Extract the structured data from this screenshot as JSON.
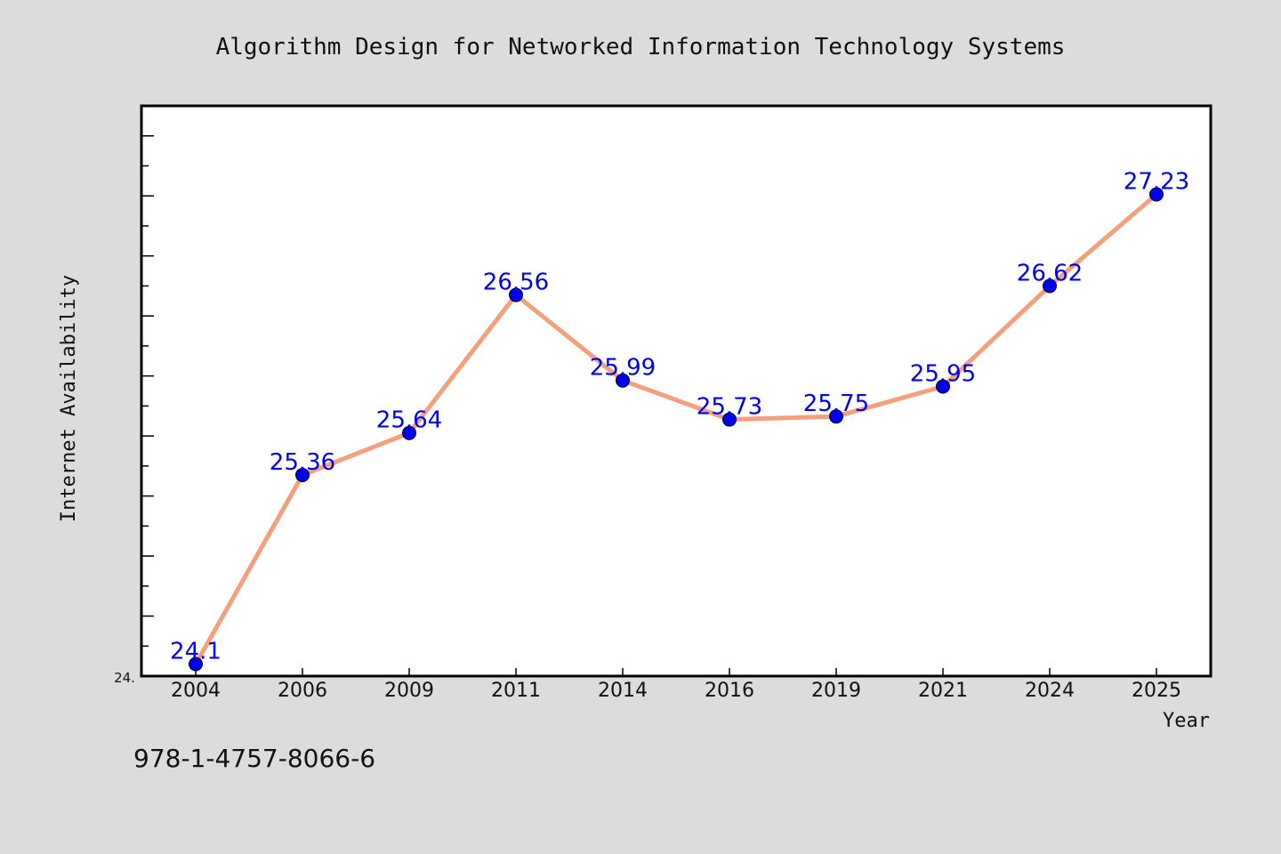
{
  "chart_data": {
    "type": "line",
    "title": "Algorithm Design for Networked Information Technology Systems",
    "xlabel": "Year",
    "ylabel": "Internet Availability",
    "y_axis_min_label": "24.",
    "categories": [
      "2004",
      "2006",
      "2009",
      "2011",
      "2014",
      "2016",
      "2019",
      "2021",
      "2024",
      "2025"
    ],
    "series": [
      {
        "values": [
          24.1,
          25.36,
          25.64,
          26.56,
          25.99,
          25.73,
          25.75,
          25.95,
          26.62,
          27.23
        ],
        "labels": [
          "24.1",
          "25.36",
          "25.64",
          "26.56",
          "25.99",
          "25.73",
          "25.75",
          "25.95",
          "26.62",
          "27.23"
        ]
      }
    ],
    "ylim": [
      24.02,
      27.82
    ],
    "grid": false,
    "legend": "none",
    "line_color": "#f4a07c",
    "marker_color": "#0000ee",
    "label_color": "#0000ee"
  },
  "footer": {
    "isbn": "978-1-4757-8066-6"
  }
}
